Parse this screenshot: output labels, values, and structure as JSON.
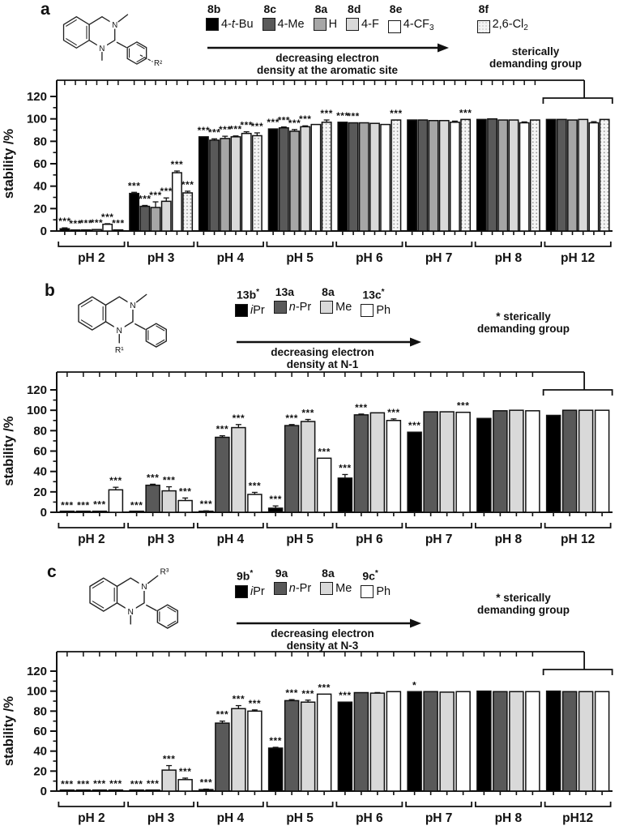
{
  "figure": {
    "ylabel": "stability /%"
  },
  "panels": [
    {
      "letter": "a",
      "structure": {
        "n_top": "N",
        "n_bottom": "N",
        "top_label": "",
        "bottom_label": "",
        "ring_label": "R²"
      },
      "legend": [
        {
          "id": "8b",
          "star": false,
          "swatch": "#000000",
          "label": [
            {
              "t": "4-"
            },
            {
              "t": "t",
              "i": true
            },
            {
              "t": "-Bu"
            }
          ]
        },
        {
          "id": "8c",
          "star": false,
          "swatch": "#595959",
          "label": [
            {
              "t": "4-Me"
            }
          ]
        },
        {
          "id": "8a",
          "star": false,
          "swatch": "#a6a6a6",
          "label": [
            {
              "t": "H"
            }
          ]
        },
        {
          "id": "8d",
          "star": false,
          "swatch": "#d9d9d9",
          "label": [
            {
              "t": "4-F"
            }
          ]
        },
        {
          "id": "8e",
          "star": false,
          "swatch": "#ffffff",
          "label": [
            {
              "t": "4-CF"
            },
            {
              "t": "3",
              "sub": true
            }
          ]
        },
        {
          "id": "8f",
          "star": false,
          "swatch": "dots",
          "gap": true,
          "label": [
            {
              "t": "2,6-Cl"
            },
            {
              "t": "2",
              "sub": true
            }
          ]
        }
      ],
      "arrow_caption": [
        "decreasing electron",
        "density at the aromatic site"
      ],
      "side_note": [
        "sterically",
        "demanding group"
      ]
    },
    {
      "letter": "b",
      "structure": {
        "n_top": "N",
        "n_bottom": "N",
        "top_label": "",
        "bottom_label": "R¹",
        "ring_label": ""
      },
      "legend": [
        {
          "id": "13b",
          "star": true,
          "swatch": "#000000",
          "label": [
            {
              "t": "i",
              "i": true
            },
            {
              "t": "Pr"
            }
          ]
        },
        {
          "id": "13a",
          "star": false,
          "swatch": "#595959",
          "label": [
            {
              "t": "n",
              "i": true
            },
            {
              "t": "-Pr"
            }
          ]
        },
        {
          "id": "8a",
          "star": false,
          "swatch": "#d9d9d9",
          "label": [
            {
              "t": "Me"
            }
          ]
        },
        {
          "id": "13c",
          "star": true,
          "swatch": "#ffffff",
          "label": [
            {
              "t": "Ph"
            }
          ]
        }
      ],
      "arrow_caption": [
        "decreasing electron",
        "density at N-1"
      ],
      "side_note": [
        "* sterically",
        "demanding group"
      ]
    },
    {
      "letter": "c",
      "structure": {
        "n_top": "N",
        "n_bottom": "N",
        "top_label": "R³",
        "bottom_label": "",
        "ring_label": ""
      },
      "legend": [
        {
          "id": "9b",
          "star": true,
          "swatch": "#000000",
          "label": [
            {
              "t": "i",
              "i": true
            },
            {
              "t": "Pr"
            }
          ]
        },
        {
          "id": "9a",
          "star": false,
          "swatch": "#595959",
          "label": [
            {
              "t": "n",
              "i": true
            },
            {
              "t": "-Pr"
            }
          ]
        },
        {
          "id": "8a",
          "star": false,
          "swatch": "#d9d9d9",
          "label": [
            {
              "t": "Me"
            }
          ]
        },
        {
          "id": "9c",
          "star": true,
          "swatch": "#ffffff",
          "label": [
            {
              "t": "Ph"
            }
          ]
        }
      ],
      "arrow_caption": [
        "decreasing electron",
        "density at N-3"
      ],
      "side_note": [
        "* sterically",
        "demanding group"
      ]
    }
  ],
  "chart_data": [
    {
      "type": "bar",
      "panel": "a",
      "ylabel": "stability /%",
      "ylim": [
        0,
        120
      ],
      "yticks": [
        0,
        20,
        40,
        60,
        80,
        100,
        120
      ],
      "categories": [
        "pH 2",
        "pH 3",
        "pH 4",
        "pH 5",
        "pH 6",
        "pH 7",
        "pH 8",
        "pH 12"
      ],
      "comparison_bracket_over": "pH 12",
      "series": [
        {
          "name": "8b (4-t-Bu)",
          "fill": "#000000",
          "values": [
            2,
            33.5,
            84,
            91,
            97,
            99,
            99.5,
            99.5
          ],
          "errors": [
            0.8,
            1,
            0,
            0,
            0,
            0,
            0,
            0
          ],
          "stars": [
            "***",
            "***",
            "***",
            "***",
            "***",
            "",
            "",
            ""
          ]
        },
        {
          "name": "8c (4-Me)",
          "fill": "#595959",
          "values": [
            0.7,
            22,
            81,
            92,
            96.5,
            99,
            100,
            99.5
          ],
          "errors": [
            0,
            0.8,
            1.2,
            0.8,
            0,
            0,
            0,
            0
          ],
          "stars": [
            "***",
            "***",
            "***",
            "***",
            "***",
            "",
            "",
            ""
          ]
        },
        {
          "name": "8a (H)",
          "fill": "#a6a6a6",
          "values": [
            1,
            21,
            82.5,
            89,
            96.5,
            98.5,
            99,
            99
          ],
          "errors": [
            0,
            5,
            2,
            1.5,
            0,
            0,
            0,
            0
          ],
          "stars": [
            "***",
            "***",
            "***",
            "***",
            "",
            "",
            "",
            ""
          ]
        },
        {
          "name": "8d (4-F)",
          "fill": "#d9d9d9",
          "values": [
            1.3,
            26.5,
            84,
            93,
            96,
            98.5,
            99,
            99.5
          ],
          "errors": [
            0,
            3,
            0.8,
            0.8,
            0,
            0,
            0,
            0
          ],
          "stars": [
            "***",
            "***",
            "***",
            "***",
            "",
            "",
            "",
            ""
          ]
        },
        {
          "name": "8e (4-CF3)",
          "fill": "#ffffff",
          "values": [
            6,
            52,
            87,
            95,
            95,
            97,
            96.5,
            96.5
          ],
          "errors": [
            0.5,
            1.5,
            1.5,
            0,
            0,
            1,
            0.8,
            1
          ],
          "stars": [
            "***",
            "***",
            "***",
            "",
            "",
            "",
            "",
            ""
          ]
        },
        {
          "name": "8f (2,6-Cl2)",
          "fill": "dots",
          "values": [
            1,
            34,
            85,
            97,
            99,
            99.5,
            99,
            99.5
          ],
          "errors": [
            0,
            1.5,
            2.5,
            2,
            0,
            0,
            0,
            0
          ],
          "stars": [
            "***",
            "***",
            "***",
            "***",
            "***",
            "***",
            "",
            ""
          ]
        }
      ]
    },
    {
      "type": "bar",
      "panel": "b",
      "ylabel": "stability /%",
      "ylim": [
        0,
        120
      ],
      "yticks": [
        0,
        20,
        40,
        60,
        80,
        100,
        120
      ],
      "categories": [
        "pH 2",
        "pH 3",
        "pH 4",
        "pH 5",
        "pH 6",
        "pH 7",
        "pH 8",
        "pH 12"
      ],
      "comparison_bracket_over": "pH 12",
      "series": [
        {
          "name": "13b (iPr)",
          "fill": "#000000",
          "values": [
            0.5,
            0.5,
            1,
            4,
            33.5,
            78.5,
            92,
            95
          ],
          "errors": [
            0,
            0,
            0.4,
            2.2,
            3.5,
            0,
            0,
            0
          ],
          "stars": [
            "***",
            "***",
            "***",
            "***",
            "***",
            "***",
            "",
            ""
          ]
        },
        {
          "name": "13a (n-Pr)",
          "fill": "#595959",
          "values": [
            0.5,
            26.5,
            73.5,
            85,
            95.5,
            98.5,
            99.5,
            100
          ],
          "errors": [
            0,
            1,
            1.5,
            1,
            0.8,
            0,
            0,
            0
          ],
          "stars": [
            "***",
            "***",
            "***",
            "***",
            "***",
            "",
            "",
            ""
          ]
        },
        {
          "name": "8a (Me)",
          "fill": "#d9d9d9",
          "values": [
            1,
            21,
            83,
            89,
            97.5,
            98.5,
            100,
            100
          ],
          "errors": [
            0,
            4,
            3,
            2,
            0,
            0,
            0,
            0
          ],
          "stars": [
            "***",
            "***",
            "***",
            "***",
            "",
            "",
            "",
            ""
          ]
        },
        {
          "name": "13c (Ph)",
          "fill": "#ffffff",
          "values": [
            22,
            11.5,
            17.5,
            53,
            90,
            98,
            99.5,
            100
          ],
          "errors": [
            2.5,
            2.5,
            2,
            0,
            1.5,
            0,
            0,
            0
          ],
          "stars": [
            "***",
            "***",
            "***",
            "***",
            "***",
            "***",
            "",
            ""
          ]
        }
      ]
    },
    {
      "type": "bar",
      "panel": "c",
      "ylabel": "stability /%",
      "ylim": [
        0,
        120
      ],
      "yticks": [
        0,
        20,
        40,
        60,
        80,
        100,
        120
      ],
      "categories": [
        "pH 2",
        "pH 3",
        "pH 4",
        "pH 5",
        "pH 6",
        "pH 7",
        "pH 8",
        "pH12"
      ],
      "comparison_bracket_over": "pH12",
      "series": [
        {
          "name": "9b (iPr)",
          "fill": "#000000",
          "values": [
            0.4,
            0.5,
            1.5,
            43,
            89,
            99.5,
            100,
            100
          ],
          "errors": [
            0,
            0,
            0.5,
            0.8,
            0,
            0,
            0,
            0
          ],
          "stars": [
            "***",
            "***",
            "***",
            "***",
            "***",
            "*",
            "",
            ""
          ]
        },
        {
          "name": "9a (n-Pr)",
          "fill": "#595959",
          "values": [
            0.5,
            1,
            68,
            90.5,
            98.5,
            99.5,
            99.5,
            99.5
          ],
          "errors": [
            0,
            0,
            2,
            1,
            0,
            0,
            0,
            0
          ],
          "stars": [
            "***",
            "***",
            "***",
            "***",
            "",
            "",
            "",
            ""
          ]
        },
        {
          "name": "8a (Me)",
          "fill": "#d9d9d9",
          "values": [
            1,
            21,
            82.5,
            89,
            98,
            99,
            99.5,
            99.5
          ],
          "errors": [
            0,
            4.5,
            3,
            2,
            0.6,
            0,
            0,
            0
          ],
          "stars": [
            "***",
            "***",
            "***",
            "***",
            "",
            "",
            "",
            ""
          ]
        },
        {
          "name": "9c (Ph)",
          "fill": "#ffffff",
          "values": [
            1,
            11.5,
            80,
            97,
            99.5,
            99.5,
            99.5,
            99.5
          ],
          "errors": [
            0,
            1.5,
            1.2,
            0,
            0,
            0,
            0,
            0
          ],
          "stars": [
            "***",
            "***",
            "***",
            "***",
            "",
            "",
            "",
            ""
          ]
        }
      ]
    }
  ]
}
